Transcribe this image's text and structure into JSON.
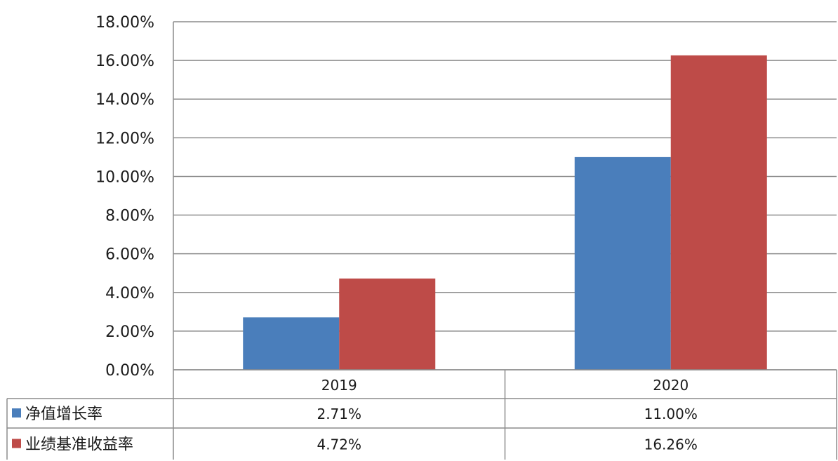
{
  "chart_data": {
    "type": "bar",
    "categories": [
      "2019",
      "2020"
    ],
    "series": [
      {
        "name": "净值增长率",
        "values": [
          2.71,
          11.0
        ],
        "labels": [
          "2.71%",
          "11.00%"
        ],
        "color": "#4a7ebb"
      },
      {
        "name": "业绩基准收益率",
        "values": [
          4.72,
          16.26
        ],
        "labels": [
          "4.72%",
          "16.26%"
        ],
        "color": "#be4b48"
      }
    ],
    "ylim": [
      0,
      18
    ],
    "yticks": [
      "0.00%",
      "2.00%",
      "4.00%",
      "6.00%",
      "8.00%",
      "10.00%",
      "12.00%",
      "14.00%",
      "16.00%",
      "18.00%"
    ],
    "grid": true,
    "legend": "data-table-left",
    "title": "",
    "xlabel": "",
    "ylabel": ""
  }
}
